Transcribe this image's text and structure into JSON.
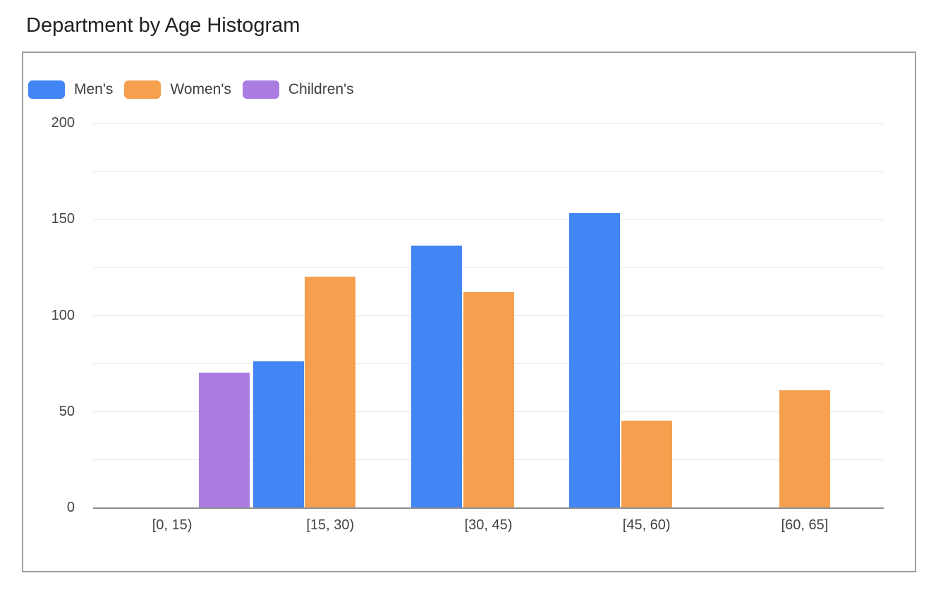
{
  "chart_data": {
    "type": "bar",
    "title": "Department by Age Histogram",
    "categories": [
      "[0, 15)",
      "[15, 30)",
      "[30, 45)",
      "[45, 60)",
      "[60, 65]"
    ],
    "series": [
      {
        "name": "Men's",
        "color": "#4285F4",
        "values": [
          0,
          76,
          136,
          153,
          0
        ]
      },
      {
        "name": "Women's",
        "color": "#F6A04F",
        "values": [
          0,
          120,
          112,
          45,
          61
        ]
      },
      {
        "name": "Children's",
        "color": "#AB7DE3",
        "values": [
          70,
          0,
          0,
          0,
          0
        ]
      }
    ],
    "xlabel": "",
    "ylabel": "",
    "ylim": [
      0,
      200
    ],
    "y_major_ticks": [
      0,
      50,
      100,
      150,
      200
    ],
    "grid_step": 25,
    "grid": true,
    "legend_position": "top-left",
    "bar_grouping": "grouped"
  },
  "colors": {
    "gridline": "#E4E4E4",
    "baseline": "#8F8F8F",
    "card_border": "#9E9E9E",
    "title_text": "#212121",
    "axis_text": "#424242",
    "legend_text": "#3C4043",
    "background": "#FFFFFF"
  }
}
